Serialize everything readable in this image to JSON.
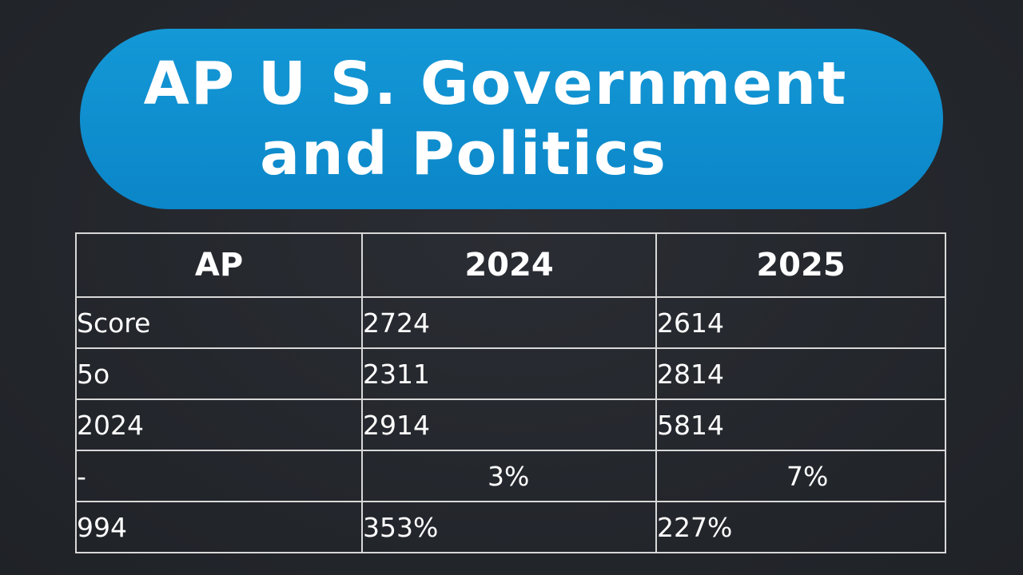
{
  "title": {
    "line1": "AP U S. Government",
    "line2": "and Politics"
  },
  "colors": {
    "background": "#23262c",
    "title_pill": "#0b86c8",
    "grid_lines": "#d8d8d8",
    "text": "#ffffff"
  },
  "chart_data": {
    "type": "table",
    "title": "AP U S. Government and Politics",
    "columns": [
      "AP",
      "2024",
      "2025"
    ],
    "rows": [
      [
        "Score",
        "2724",
        "2614"
      ],
      [
        "5o",
        "2311",
        "2814"
      ],
      [
        "2024",
        "2914",
        "5814"
      ],
      [
        "-",
        "3%",
        "7%"
      ],
      [
        "994",
        "353%",
        "227%"
      ]
    ]
  }
}
